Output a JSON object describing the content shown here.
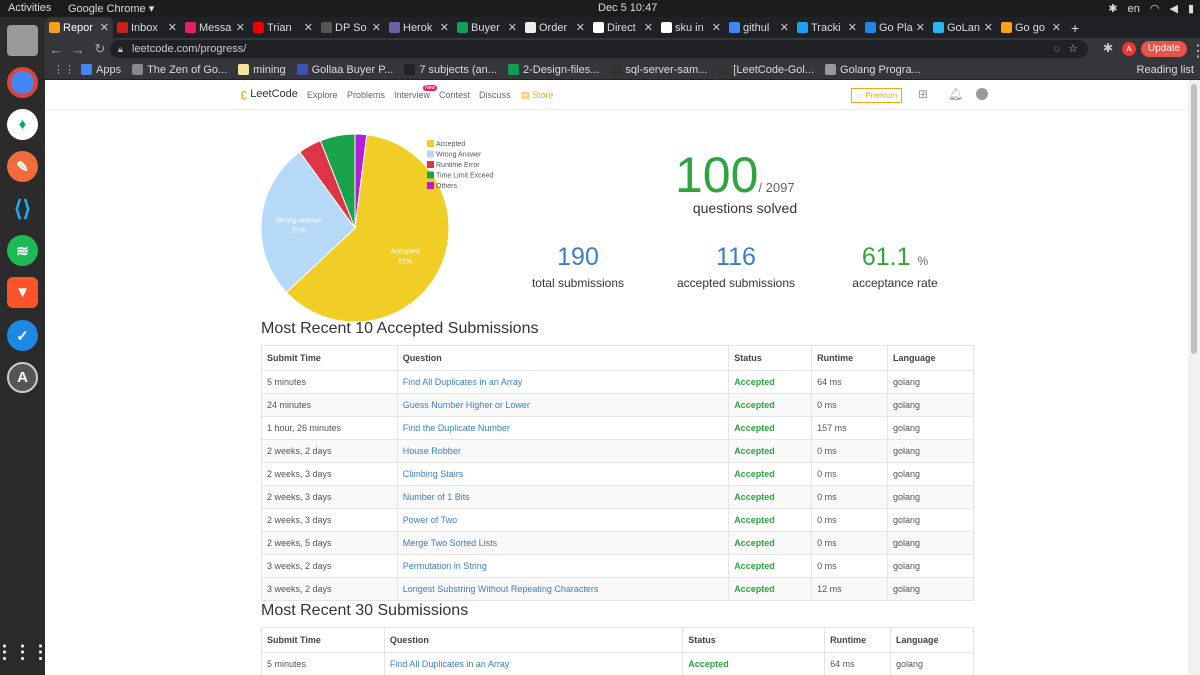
{
  "topbar": {
    "activities": "Activities",
    "app": "Google Chrome ▾",
    "clock": "Dec 5  10:47",
    "lang": "en"
  },
  "tabs": [
    {
      "label": "Repor",
      "color": "#f89f1b",
      "active": true
    },
    {
      "label": "Inbox",
      "color": "#c5221f"
    },
    {
      "label": "Messa",
      "color": "#e91e63"
    },
    {
      "label": "Trian",
      "color": "#e00"
    },
    {
      "label": "DP So",
      "color": "#555"
    },
    {
      "label": "Herok",
      "color": "#6762a6"
    },
    {
      "label": "Buyer",
      "color": "#0f9d58"
    },
    {
      "label": "Order",
      "color": "#eee"
    },
    {
      "label": "Direct",
      "color": "#fff"
    },
    {
      "label": "sku in",
      "color": "#fff"
    },
    {
      "label": "githul",
      "color": "#4285f4"
    },
    {
      "label": "Tracki",
      "color": "#1da1f2"
    },
    {
      "label": "Go Pla",
      "color": "#1e88e5"
    },
    {
      "label": "GoLan",
      "color": "#29b6f6"
    },
    {
      "label": "Go go",
      "color": "#f89f1b"
    }
  ],
  "toolbar": {
    "url": "leetcode.com/progress/",
    "update": "Update"
  },
  "bookmarks": [
    {
      "label": "Apps",
      "color": "#4285f4"
    },
    {
      "label": "The Zen of Go...",
      "color": "#888"
    },
    {
      "label": "mining",
      "color": "#f3e6a0"
    },
    {
      "label": "Gollaa Buyer P...",
      "color": "#3f51b5"
    },
    {
      "label": "7 subjects (an...",
      "color": "#222"
    },
    {
      "label": "2-Design-files...",
      "color": "#0f9d58"
    },
    {
      "label": "sql-server-sam...",
      "color": "#333"
    },
    {
      "label": "[LeetCode-Gol...",
      "color": "#333"
    },
    {
      "label": "Golang Progra...",
      "color": "#999"
    }
  ],
  "bookmarks_right": "Reading list",
  "nav": {
    "logo": "LeetCode",
    "items": [
      "Explore",
      "Problems",
      "Interview",
      "Contest",
      "Discuss"
    ],
    "new_badge": "New",
    "store": "Store",
    "premium": "Premium"
  },
  "chart_data": {
    "type": "pie",
    "categories": [
      "Accepted",
      "Wrong Answer",
      "Runtime Error",
      "Time Limit Exceed",
      "Others"
    ],
    "values": [
      61,
      27,
      4,
      6,
      2
    ],
    "colors": [
      "#f0ce26",
      "#b6d9f7",
      "#dd3545",
      "#1aa34a",
      "#b61dd8"
    ],
    "slice_labels": [
      {
        "name": "Accepted",
        "pct": "61%"
      },
      {
        "name": "Wrong Answer",
        "pct": "27%"
      }
    ],
    "legend": "top-right"
  },
  "stats": {
    "solved": "100",
    "total": "/ 2097",
    "solved_label": "questions solved",
    "submissions": "190",
    "submissions_label": "total submissions",
    "accepted": "116",
    "accepted_label": "accepted submissions",
    "rate": "61.1",
    "rate_unit": "%",
    "rate_label": "acceptance rate"
  },
  "recent10": {
    "title": "Most Recent 10 Accepted Submissions",
    "headers": [
      "Submit Time",
      "Question",
      "Status",
      "Runtime",
      "Language"
    ],
    "rows": [
      [
        "5 minutes",
        "Find All Duplicates in an Array",
        "Accepted",
        "64 ms",
        "golang"
      ],
      [
        "24 minutes",
        "Guess Number Higher or Lower",
        "Accepted",
        "0 ms",
        "golang"
      ],
      [
        "1 hour, 26 minutes",
        "Find the Duplicate Number",
        "Accepted",
        "157 ms",
        "golang"
      ],
      [
        "2 weeks, 2 days",
        "House Robber",
        "Accepted",
        "0 ms",
        "golang"
      ],
      [
        "2 weeks, 3 days",
        "Climbing Stairs",
        "Accepted",
        "0 ms",
        "golang"
      ],
      [
        "2 weeks, 3 days",
        "Number of 1 Bits",
        "Accepted",
        "0 ms",
        "golang"
      ],
      [
        "2 weeks, 3 days",
        "Power of Two",
        "Accepted",
        "0 ms",
        "golang"
      ],
      [
        "2 weeks, 5 days",
        "Merge Two Sorted Lists",
        "Accepted",
        "0 ms",
        "golang"
      ],
      [
        "3 weeks, 2 days",
        "Permutation in String",
        "Accepted",
        "0 ms",
        "golang"
      ],
      [
        "3 weeks, 2 days",
        "Longest Substring Without Repeating Characters",
        "Accepted",
        "12 ms",
        "golang"
      ]
    ]
  },
  "recent30": {
    "title": "Most Recent 30 Submissions",
    "headers": [
      "Submit Time",
      "Question",
      "Status",
      "Runtime",
      "Language"
    ],
    "rows": [
      [
        "5 minutes",
        "Find All Duplicates in an Array",
        "Accepted",
        "64 ms",
        "golang"
      ]
    ]
  }
}
